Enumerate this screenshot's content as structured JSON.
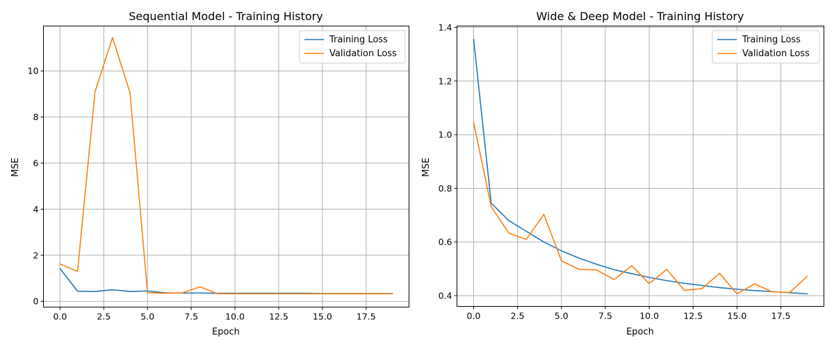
{
  "chart_data": [
    {
      "type": "line",
      "title": "Sequential Model - Training History",
      "xlabel": "Epoch",
      "ylabel": "MSE",
      "xlim": [
        -0.95,
        19.95
      ],
      "ylim": [
        -0.25,
        11.95
      ],
      "xticks": [
        0,
        2.5,
        5,
        7.5,
        10,
        12.5,
        15,
        17.5
      ],
      "xtick_labels": [
        "0.0",
        "2.5",
        "5.0",
        "7.5",
        "10.0",
        "12.5",
        "15.0",
        "17.5"
      ],
      "yticks": [
        0,
        2,
        4,
        6,
        8,
        10
      ],
      "ytick_labels": [
        "0",
        "2",
        "4",
        "6",
        "8",
        "10"
      ],
      "grid": true,
      "legend": "top-right",
      "x": [
        0,
        1,
        2,
        3,
        4,
        5,
        6,
        7,
        8,
        9,
        10,
        11,
        12,
        13,
        14,
        15,
        16,
        17,
        18,
        19
      ],
      "series": [
        {
          "name": "Training Loss",
          "color": "#1f77b4",
          "values": [
            1.42,
            0.44,
            0.43,
            0.5,
            0.43,
            0.45,
            0.37,
            0.36,
            0.36,
            0.35,
            0.35,
            0.35,
            0.35,
            0.35,
            0.35,
            0.34,
            0.34,
            0.34,
            0.34,
            0.34
          ]
        },
        {
          "name": "Validation Loss",
          "color": "#ff7f0e",
          "values": [
            1.62,
            1.3,
            9.1,
            11.45,
            9.05,
            0.37,
            0.35,
            0.37,
            0.63,
            0.33,
            0.33,
            0.33,
            0.33,
            0.33,
            0.33,
            0.33,
            0.33,
            0.33,
            0.33,
            0.33
          ]
        }
      ]
    },
    {
      "type": "line",
      "title": "Wide & Deep Model - Training History",
      "xlabel": "Epoch",
      "ylabel": "MSE",
      "xlim": [
        -0.95,
        19.95
      ],
      "ylim": [
        0.36,
        1.405
      ],
      "xticks": [
        0,
        2.5,
        5,
        7.5,
        10,
        12.5,
        15,
        17.5
      ],
      "xtick_labels": [
        "0.0",
        "2.5",
        "5.0",
        "7.5",
        "10.0",
        "12.5",
        "15.0",
        "17.5"
      ],
      "yticks": [
        0.4,
        0.6,
        0.8,
        1.0,
        1.2,
        1.4
      ],
      "ytick_labels": [
        "0.4",
        "0.6",
        "0.8",
        "1.0",
        "1.2",
        "1.4"
      ],
      "grid": true,
      "legend": "top-right",
      "x": [
        0,
        1,
        2,
        3,
        4,
        5,
        6,
        7,
        8,
        9,
        10,
        11,
        12,
        13,
        14,
        15,
        16,
        17,
        18,
        19
      ],
      "series": [
        {
          "name": "Training Loss",
          "color": "#1f77b4",
          "values": [
            1.355,
            0.745,
            0.68,
            0.64,
            0.6,
            0.567,
            0.54,
            0.517,
            0.497,
            0.482,
            0.468,
            0.456,
            0.446,
            0.438,
            0.43,
            0.424,
            0.419,
            0.415,
            0.411,
            0.407
          ]
        },
        {
          "name": "Validation Loss",
          "color": "#ff7f0e",
          "values": [
            1.045,
            0.732,
            0.633,
            0.61,
            0.703,
            0.53,
            0.498,
            0.496,
            0.46,
            0.512,
            0.445,
            0.498,
            0.42,
            0.426,
            0.483,
            0.407,
            0.444,
            0.414,
            0.412,
            0.472
          ]
        }
      ]
    }
  ]
}
